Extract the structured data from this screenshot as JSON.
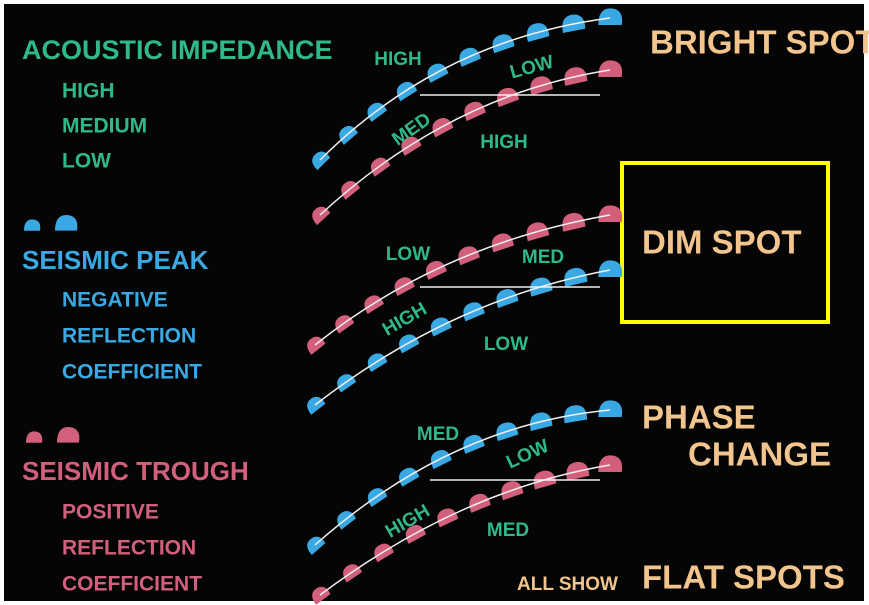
{
  "legend": {
    "title": "ACOUSTIC IMPEDANCE",
    "items": [
      "HIGH",
      "MEDIUM",
      "LOW"
    ]
  },
  "peak": {
    "title": "SEISMIC PEAK",
    "lines": [
      "NEGATIVE",
      "REFLECTION",
      "COEFFICIENT"
    ]
  },
  "trough": {
    "title": "SEISMIC TROUGH",
    "lines": [
      "POSITIVE",
      "REFLECTION",
      "COEFFICIENT"
    ]
  },
  "panels": [
    {
      "title": [
        "BRIGHT SPOT"
      ],
      "labels": [
        "HIGH",
        "LOW",
        "MED",
        "HIGH"
      ]
    },
    {
      "title": [
        "DIM SPOT"
      ],
      "labels": [
        "LOW",
        "MED",
        "HIGH",
        "LOW"
      ]
    },
    {
      "title": [
        "PHASE",
        "CHANGE"
      ],
      "labels": [
        "MED",
        "LOW",
        "HIGH",
        "MED"
      ]
    }
  ],
  "footer": {
    "note": "ALL SHOW",
    "title": "FLAT SPOTS"
  }
}
